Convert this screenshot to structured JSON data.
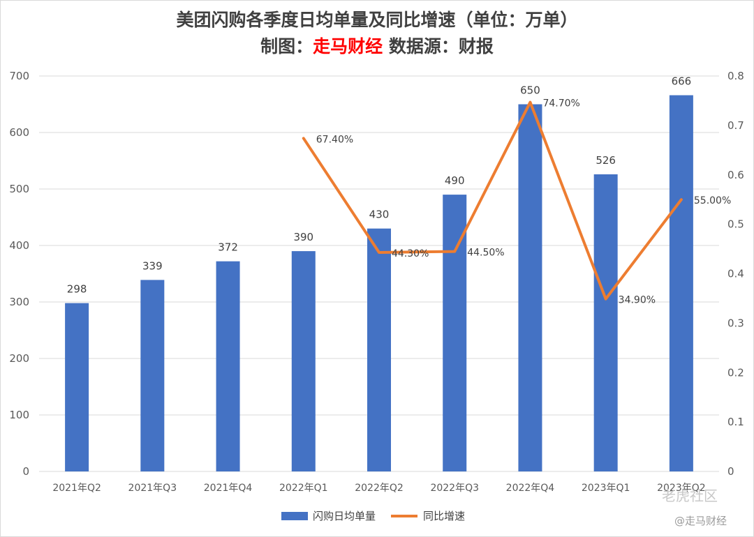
{
  "chart_data": {
    "type": "bar",
    "title": "美团闪购各季度日均单量及同比增速（单位：万单）",
    "subtitle_prefix": "制图：",
    "subtitle_brand": "走马财经",
    "subtitle_suffix": " 数据源：财报",
    "categories": [
      "2021年Q2",
      "2021年Q3",
      "2021年Q4",
      "2022年Q1",
      "2022年Q2",
      "2022年Q3",
      "2022年Q4",
      "2023年Q1",
      "2023年Q2"
    ],
    "series": [
      {
        "name": "闪购日均单量",
        "type": "bar",
        "axis": "left",
        "color": "#4472c4",
        "values": [
          298,
          339,
          372,
          390,
          430,
          490,
          650,
          526,
          666
        ],
        "labels": [
          "298",
          "339",
          "372",
          "390",
          "430",
          "490",
          "650",
          "526",
          "666"
        ]
      },
      {
        "name": "同比增速",
        "type": "line",
        "axis": "right",
        "color": "#ed7d31",
        "values": [
          null,
          null,
          null,
          0.674,
          0.443,
          0.445,
          0.747,
          0.349,
          0.55
        ],
        "labels": [
          "",
          "",
          "",
          "67.40%",
          "44.30%",
          "44.50%",
          "74.70%",
          "34.90%",
          "55.00%"
        ]
      }
    ],
    "left_axis": {
      "ylim": [
        0,
        700
      ],
      "ticks": [
        "0",
        "100",
        "200",
        "300",
        "400",
        "500",
        "600",
        "700"
      ]
    },
    "right_axis": {
      "ylim": [
        0,
        0.8
      ],
      "ticks": [
        "0",
        "0.1",
        "0.2",
        "0.3",
        "0.4",
        "0.5",
        "0.6",
        "0.7",
        "0.8"
      ]
    },
    "grid": true,
    "legend_position": "bottom",
    "watermarks": [
      "老虎社区",
      "@走马财经"
    ]
  }
}
